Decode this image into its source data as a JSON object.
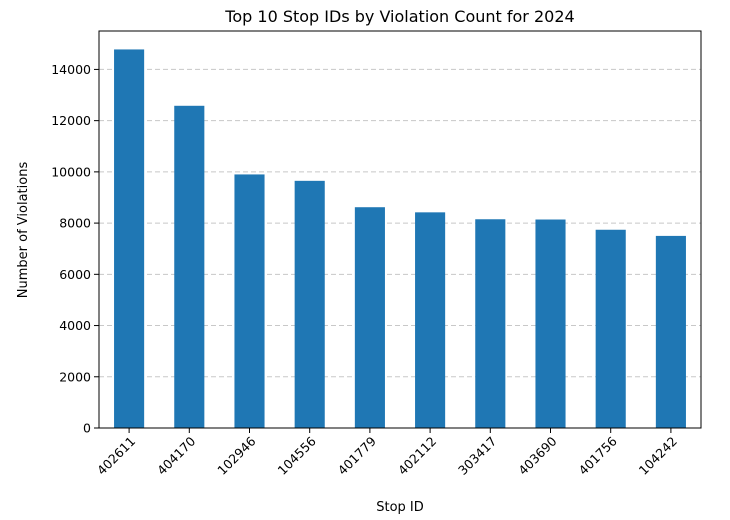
{
  "chart_data": {
    "type": "bar",
    "title": "Top 10 Stop IDs by Violation Count for 2024",
    "xlabel": "Stop ID",
    "ylabel": "Number of Violations",
    "categories": [
      "402611",
      "404170",
      "102946",
      "104556",
      "401779",
      "402112",
      "303417",
      "403690",
      "401756",
      "104242"
    ],
    "values": [
      14780,
      12580,
      9900,
      9650,
      8620,
      8420,
      8150,
      8140,
      7740,
      7500
    ],
    "ylim": [
      0,
      15500
    ],
    "yticks": [
      0,
      2000,
      4000,
      6000,
      8000,
      10000,
      12000,
      14000
    ],
    "grid": "y-dashed",
    "colors": {
      "bar": "#1f77b4"
    }
  }
}
